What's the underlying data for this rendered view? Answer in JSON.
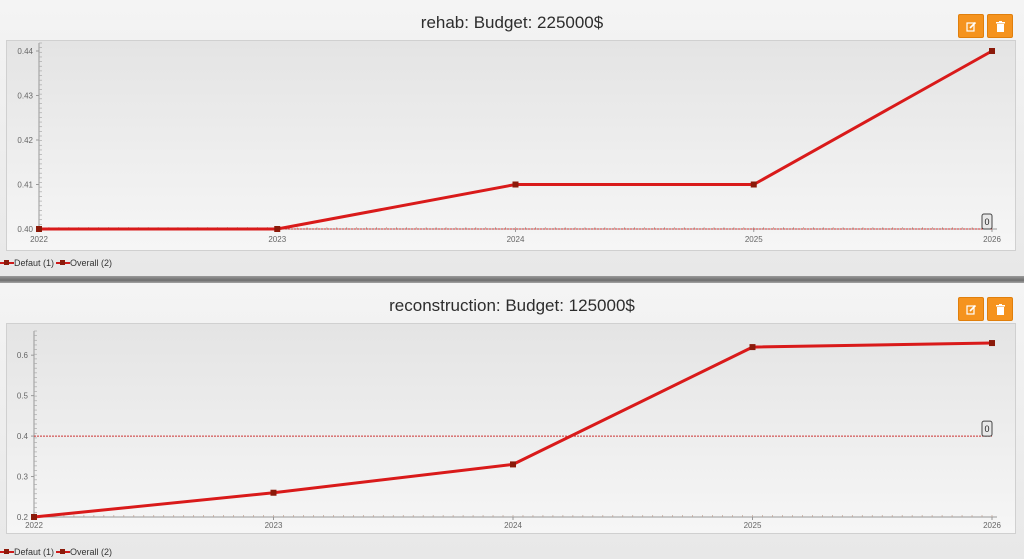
{
  "panels": [
    {
      "title": "rehab: Budget: 225000$",
      "buttons": {
        "edit_icon": "edit-icon",
        "delete_icon": "trash-icon"
      },
      "legend": [
        "Defaut (1)",
        "Overall (2)"
      ],
      "chart_data": {
        "type": "line",
        "x": [
          2022,
          2023,
          2024,
          2025,
          2026
        ],
        "series": [
          {
            "name": "Defaut (1)",
            "values": [
              0.4,
              0.4,
              0.41,
              0.41,
              0.44
            ],
            "color": "#d91a1a"
          }
        ],
        "xlim": [
          2022,
          2026
        ],
        "ylim": [
          0.4,
          0.44
        ],
        "yticks": [
          "0.40",
          "0.41",
          "0.42",
          "0.43",
          "0.44"
        ],
        "xticks": [
          "2022",
          "2023",
          "2024",
          "2025",
          "2026"
        ],
        "threshold": {
          "value": 0.4,
          "label": "0",
          "color": "#cc3333"
        },
        "grid": false
      }
    },
    {
      "title": "reconstruction: Budget: 125000$",
      "buttons": {
        "edit_icon": "edit-icon",
        "delete_icon": "trash-icon"
      },
      "legend": [
        "Defaut (1)",
        "Overall (2)"
      ],
      "chart_data": {
        "type": "line",
        "x": [
          2022,
          2023,
          2024,
          2025,
          2026
        ],
        "series": [
          {
            "name": "Defaut (1)",
            "values": [
              0.2,
              0.26,
              0.33,
              0.62,
              0.63
            ],
            "color": "#d91a1a"
          }
        ],
        "xlim": [
          2022,
          2026
        ],
        "ylim": [
          0.2,
          0.64
        ],
        "yticks": [
          "0.2",
          "0.3",
          "0.4",
          "0.5",
          "0.6"
        ],
        "xticks": [
          "2022",
          "2023",
          "2024",
          "2025",
          "2026"
        ],
        "threshold": {
          "value": 0.4,
          "label": "0",
          "color": "#cc3333"
        },
        "grid": false
      }
    }
  ],
  "colors": {
    "accent": "#f5931e",
    "line": "#d91a1a",
    "marker": "#8b1a0a"
  }
}
